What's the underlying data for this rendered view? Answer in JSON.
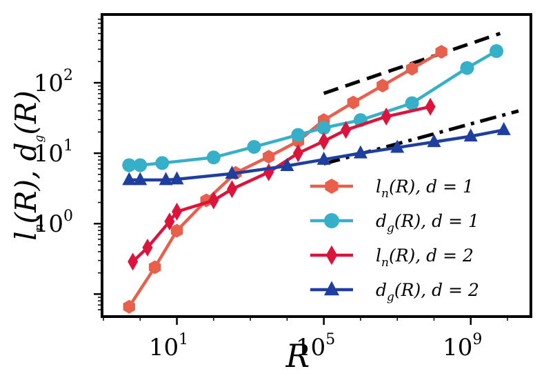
{
  "chart_data": {
    "type": "line",
    "xlabel": "R",
    "ylabel": "l_n(R), d_g(R)",
    "xscale": "log10",
    "yscale": "log10",
    "xlim_log10": [
      -1.0,
      10.6
    ],
    "ylim_log10": [
      -1.3,
      2.95
    ],
    "x_ticks": [
      {
        "log": 1,
        "base": "10",
        "exp": "1"
      },
      {
        "log": 5,
        "base": "10",
        "exp": "5"
      },
      {
        "log": 9,
        "base": "10",
        "exp": "9"
      }
    ],
    "y_ticks": [
      {
        "log": 0,
        "base": "10",
        "exp": "0"
      },
      {
        "log": 1,
        "base": "10",
        "exp": "1"
      },
      {
        "log": 2,
        "base": "10",
        "exp": "2"
      }
    ],
    "legend": {
      "position": "center-right"
    },
    "series": [
      {
        "id": "ln-d1",
        "label_func": "l",
        "label_sub": "n",
        "label_rest": "(R), d = 1",
        "color": "#e8604c",
        "marker": "hexagon",
        "points": [
          [
            -0.3,
            -1.18
          ],
          [
            0.4,
            -0.62
          ],
          [
            1.0,
            -0.1
          ],
          [
            1.8,
            0.33
          ],
          [
            2.6,
            0.72
          ],
          [
            3.5,
            0.95
          ],
          [
            4.3,
            1.17
          ],
          [
            5.0,
            1.47
          ],
          [
            5.8,
            1.72
          ],
          [
            6.6,
            1.96
          ],
          [
            7.4,
            2.2
          ],
          [
            8.2,
            2.44
          ]
        ]
      },
      {
        "id": "dg-d1",
        "label_func": "d",
        "label_sub": "g",
        "label_rest": "(R), d = 1",
        "color": "#36b0c9",
        "marker": "circle",
        "points": [
          [
            -0.3,
            0.83
          ],
          [
            0,
            0.83
          ],
          [
            0.6,
            0.86
          ],
          [
            2.0,
            0.94
          ],
          [
            3.1,
            1.09
          ],
          [
            4.3,
            1.26
          ],
          [
            5.0,
            1.36
          ],
          [
            6.0,
            1.47
          ],
          [
            7.4,
            1.71
          ],
          [
            8.9,
            2.21
          ],
          [
            9.7,
            2.45
          ]
        ]
      },
      {
        "id": "ln-d2",
        "label_func": "l",
        "label_sub": "n",
        "label_rest": "(R), d = 2",
        "color": "#dc143c",
        "marker": "diamond",
        "points": [
          [
            -0.2,
            -0.54
          ],
          [
            0.2,
            -0.34
          ],
          [
            0.8,
            0.03
          ],
          [
            1.0,
            0.17
          ],
          [
            2.0,
            0.33
          ],
          [
            2.5,
            0.49
          ],
          [
            3.5,
            0.73
          ],
          [
            4.3,
            1.0
          ],
          [
            5.0,
            1.17
          ],
          [
            5.6,
            1.33
          ],
          [
            6.7,
            1.52
          ],
          [
            7.9,
            1.66
          ]
        ]
      },
      {
        "id": "dg-d2",
        "label_func": "d",
        "label_sub": "g",
        "label_rest": "(R), d = 2",
        "color": "#1f3fa0",
        "marker": "triangle",
        "points": [
          [
            -0.3,
            0.62
          ],
          [
            0,
            0.62
          ],
          [
            0.7,
            0.62
          ],
          [
            1.0,
            0.63
          ],
          [
            2.5,
            0.71
          ],
          [
            4.0,
            0.82
          ],
          [
            5.0,
            0.91
          ],
          [
            6.0,
            1.0
          ],
          [
            7.0,
            1.08
          ],
          [
            8.0,
            1.16
          ],
          [
            9.0,
            1.24
          ],
          [
            9.9,
            1.33
          ]
        ]
      }
    ],
    "guide_lines": [
      {
        "id": "dashed-guide",
        "style": "dashed",
        "points": [
          [
            5.0,
            1.85
          ],
          [
            9.8,
            2.7
          ]
        ]
      },
      {
        "id": "dashdot-guide",
        "style": "dash-dot",
        "points": [
          [
            5.0,
            0.85
          ],
          [
            10.3,
            1.6
          ]
        ]
      }
    ]
  }
}
